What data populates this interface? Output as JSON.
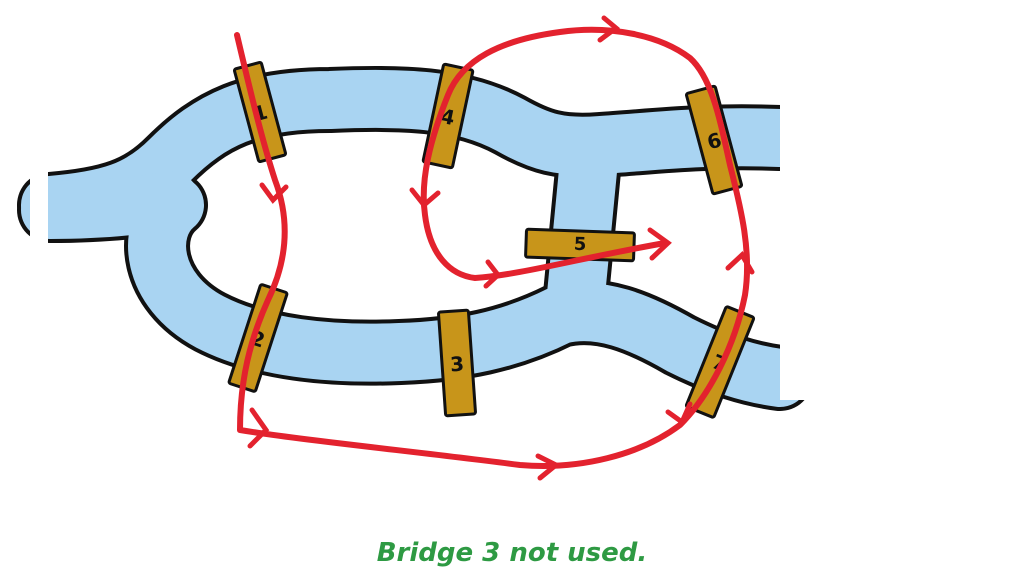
{
  "colors": {
    "water": "#a9d4f2",
    "outline": "#111111",
    "bridge": "#c8951a",
    "path": "#e3222e",
    "caption": "#2e9a43"
  },
  "bridges": [
    {
      "id": "bridge-1",
      "label": "1"
    },
    {
      "id": "bridge-2",
      "label": "2"
    },
    {
      "id": "bridge-3",
      "label": "3"
    },
    {
      "id": "bridge-4",
      "label": "4"
    },
    {
      "id": "bridge-5",
      "label": "5"
    },
    {
      "id": "bridge-6",
      "label": "6"
    },
    {
      "id": "bridge-7",
      "label": "7"
    }
  ],
  "caption": "Bridge 3 not used."
}
